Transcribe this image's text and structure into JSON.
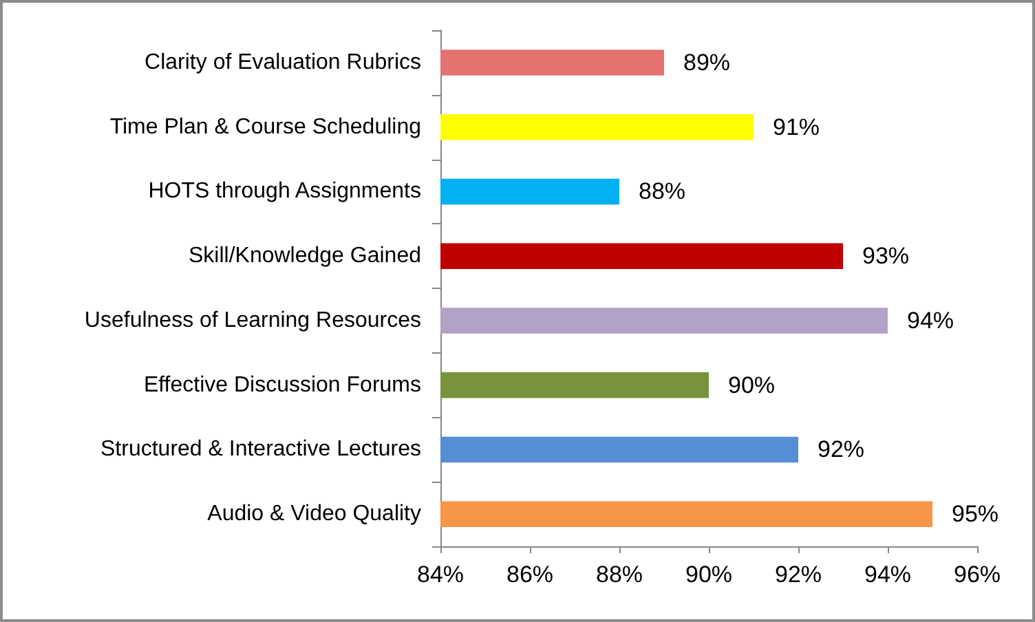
{
  "chart_data": {
    "type": "bar",
    "orientation": "horizontal",
    "categories": [
      "Clarity of Evaluation Rubrics",
      "Time Plan & Course Scheduling",
      "HOTS through Assignments",
      "Skill/Knowledge Gained",
      "Usefulness of Learning Resources",
      "Effective Discussion Forums",
      "Structured & Interactive Lectures",
      "Audio & Video Quality"
    ],
    "values": [
      89,
      91,
      88,
      93,
      94,
      90,
      92,
      95
    ],
    "colors": [
      "#e5726f",
      "#ffff00",
      "#00b0f0",
      "#c00000",
      "#b3a2c7",
      "#77933c",
      "#558ed5",
      "#f79646"
    ],
    "value_labels": [
      "89%",
      "91%",
      "88%",
      "93%",
      "94%",
      "90%",
      "92%",
      "95%"
    ],
    "xlim": [
      84,
      96
    ],
    "xticks": [
      {
        "value": 84,
        "label": "84%"
      },
      {
        "value": 86,
        "label": "86%"
      },
      {
        "value": 88,
        "label": "88%"
      },
      {
        "value": 90,
        "label": "90%"
      },
      {
        "value": 92,
        "label": "92%"
      },
      {
        "value": 94,
        "label": "94%"
      },
      {
        "value": 96,
        "label": "96%"
      }
    ]
  }
}
